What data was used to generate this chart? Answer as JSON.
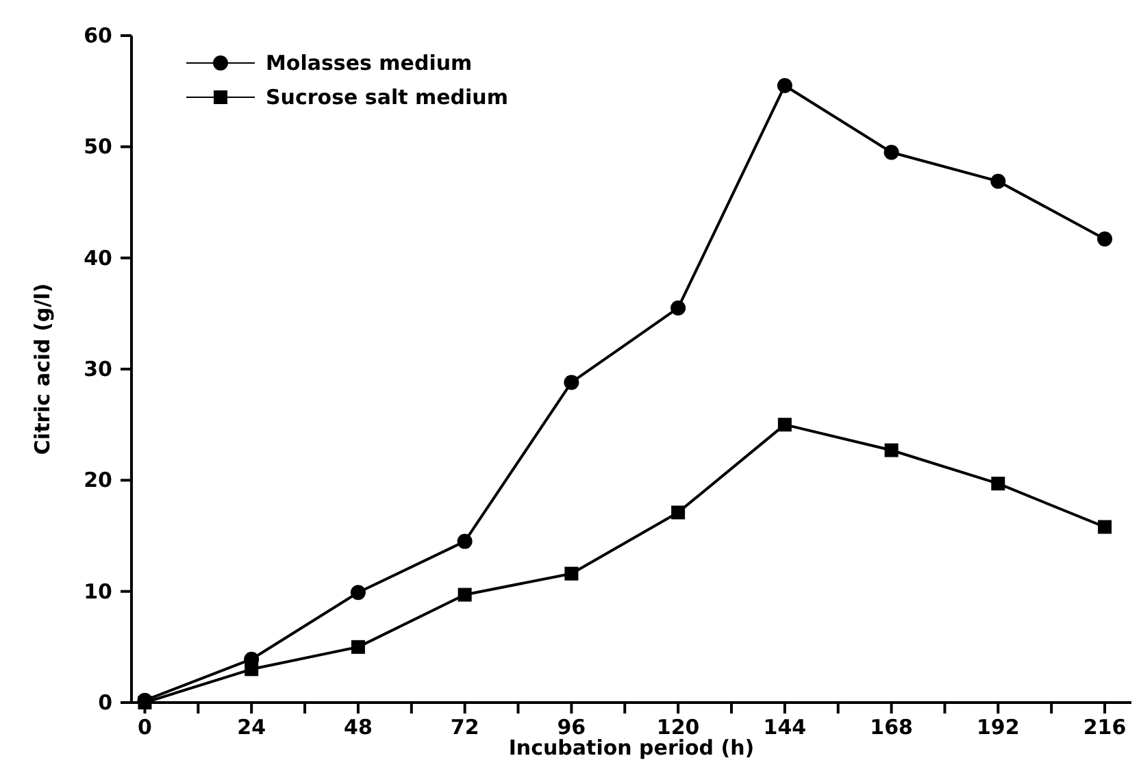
{
  "chart_data": {
    "type": "line",
    "xlabel": "Incubation period (h)",
    "ylabel": "Citric acid (g/l)",
    "x": [
      0,
      24,
      48,
      72,
      96,
      120,
      144,
      168,
      192,
      216
    ],
    "series": [
      {
        "name": "Molasses medium",
        "color": "#000000",
        "marker": "circle",
        "values": [
          0.2,
          3.9,
          9.9,
          14.5,
          28.8,
          35.5,
          55.5,
          49.5,
          46.9,
          41.7
        ]
      },
      {
        "name": "Sucrose salt medium",
        "color": "#000000",
        "marker": "square",
        "values": [
          0,
          3.0,
          5.0,
          9.7,
          11.6,
          17.1,
          25.0,
          22.7,
          19.7,
          15.8
        ]
      }
    ],
    "xlim": [
      -3,
      222
    ],
    "xticks": [
      0,
      {
        "value": 12,
        "label": null
      },
      24,
      {
        "value": 36,
        "label": null
      },
      48,
      {
        "value": 60,
        "label": null
      },
      72,
      {
        "value": 84,
        "label": null
      },
      96,
      {
        "value": 108,
        "label": null
      },
      120,
      {
        "value": 132,
        "label": null
      },
      144,
      {
        "value": 156,
        "label": null
      },
      168,
      {
        "value": 180,
        "label": null
      },
      192,
      {
        "value": 204,
        "label": null
      },
      216
    ],
    "ylim": [
      0,
      60
    ],
    "yticks": [
      0,
      10,
      20,
      30,
      40,
      50,
      60
    ],
    "grid": false,
    "legend": "top left",
    "line_style": "solid"
  }
}
